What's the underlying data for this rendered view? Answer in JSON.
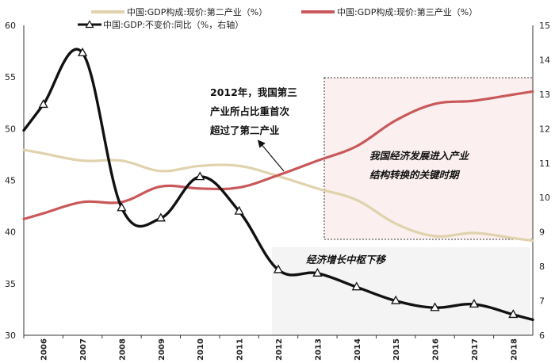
{
  "chart_data": {
    "type": "line",
    "x": [
      "2006",
      "2007",
      "2008",
      "2009",
      "2010",
      "2011",
      "2012",
      "2013",
      "2014",
      "2015",
      "2016",
      "2017",
      "2018"
    ],
    "series": [
      {
        "name": "中国:GDP构成:现价:第二产业（%）",
        "axis": "left",
        "color": "#e0d2ad",
        "values": [
          47.6,
          46.9,
          46.9,
          45.9,
          46.4,
          46.4,
          45.4,
          44.2,
          43.1,
          40.8,
          39.6,
          39.9,
          39.4
        ]
      },
      {
        "name": "中国:GDP构成:现价:第三产业（%）",
        "axis": "left",
        "color": "#c9585a",
        "values": [
          41.8,
          42.9,
          42.9,
          44.4,
          44.2,
          44.3,
          45.5,
          46.9,
          48.3,
          50.8,
          52.4,
          52.7,
          53.3
        ]
      },
      {
        "name": "中国:GDP:不变价:同比（%，右轴）",
        "axis": "right",
        "color": "#111111",
        "values": [
          12.7,
          14.2,
          9.7,
          9.4,
          10.6,
          9.6,
          7.9,
          7.8,
          7.4,
          7.0,
          6.8,
          6.9,
          6.6
        ]
      }
    ],
    "left_axis": {
      "ylim": [
        30,
        60
      ],
      "ticks": [
        "30",
        "35",
        "40",
        "45",
        "50",
        "55",
        "60"
      ]
    },
    "right_axis": {
      "ylim": [
        6,
        15
      ],
      "ticks": [
        "6",
        "7",
        "8",
        "9",
        "10",
        "11",
        "12",
        "13",
        "14",
        "15"
      ]
    },
    "legend_position": "top",
    "annotations": {
      "crossover": [
        "2012年，我国第三",
        "产业所占比重首次",
        "超过了第二产业"
      ],
      "transition": [
        "我国经济发展进入产业",
        "结构转换的关键时期"
      ],
      "slowdown": "经济增长中枢下移"
    }
  }
}
